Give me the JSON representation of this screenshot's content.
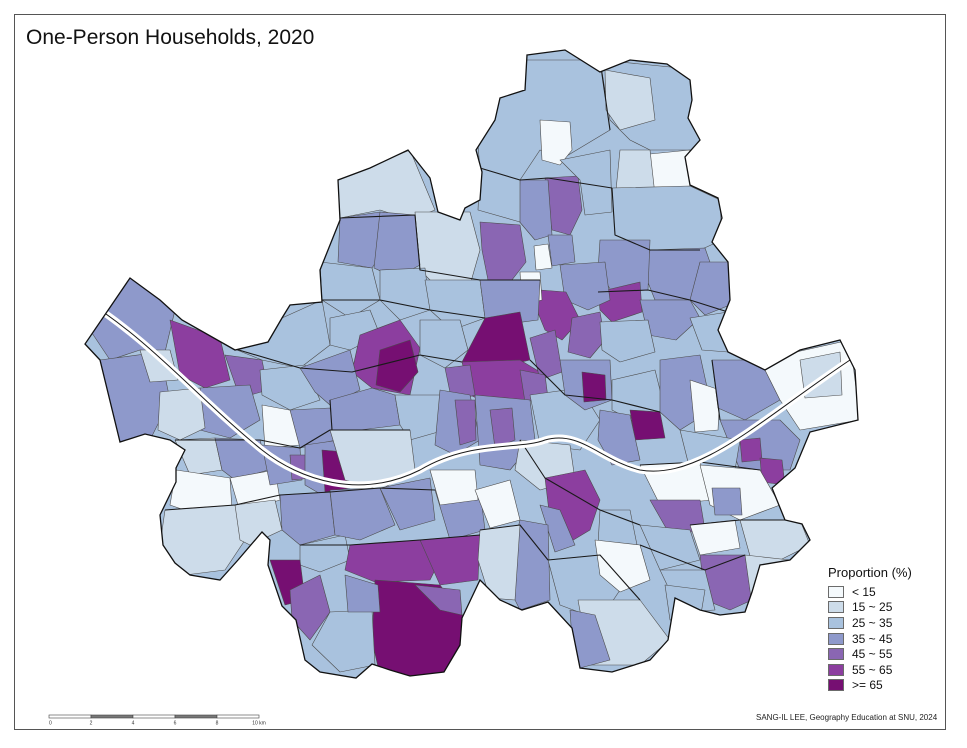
{
  "map": {
    "title": "One-Person Households, 2020",
    "legend": {
      "title": "Proportion (%)",
      "classes": [
        {
          "label": "< 15",
          "color": "#f4f9fc"
        },
        {
          "label": "15 ~ 25",
          "color": "#cddcea"
        },
        {
          "label": "25 ~ 35",
          "color": "#a9c2de"
        },
        {
          "label": "35 ~ 45",
          "color": "#8e99cb"
        },
        {
          "label": "45 ~ 55",
          "color": "#8a66b3"
        },
        {
          "label": "55 ~ 65",
          "color": "#8c3e9f"
        },
        {
          "label": ">= 65",
          "color": "#760f72"
        }
      ]
    },
    "scale_bar": {
      "ticks": [
        "0",
        "2",
        "4",
        "6",
        "8",
        "10 km"
      ]
    },
    "credit": "SANG-IL LEE, Geography Education at SNU, 2024"
  }
}
